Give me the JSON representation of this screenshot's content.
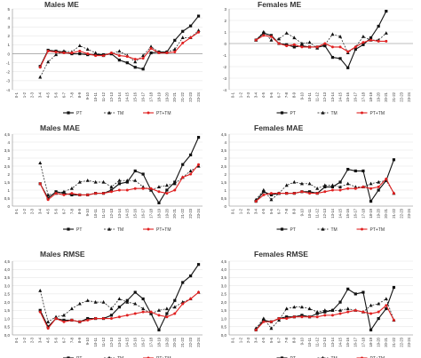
{
  "chart_data": [
    {
      "type": "line",
      "title": "Males ME",
      "ylim": [
        -4,
        5
      ],
      "yticks": [
        -4,
        -3,
        -2,
        -1,
        0,
        1,
        2,
        3,
        4,
        5
      ],
      "ytick_labels": [
        "-4",
        "-3",
        "-2",
        "-1",
        "0",
        "1",
        "2",
        "3",
        "4",
        "5"
      ],
      "categories": [
        "0-1",
        "1-2",
        "2-3",
        "3-4",
        "4-5",
        "5-6",
        "6-7",
        "7-8",
        "8-9",
        "9-10",
        "10-11",
        "11-12",
        "12-13",
        "13-14",
        "14-15",
        "15-16",
        "16-17",
        "17-18",
        "18-19",
        "19-20",
        "20-21",
        "21-22",
        "22-23",
        "23-24"
      ],
      "legend": [
        "PT",
        "TM",
        "PT+TM"
      ],
      "series": [
        {
          "name": "PT",
          "values": [
            null,
            null,
            null,
            -1.4,
            0.4,
            0.3,
            0.2,
            0.0,
            0.0,
            -0.1,
            -0.1,
            -0.1,
            0.0,
            -0.7,
            -1.0,
            -1.5,
            -1.7,
            0.1,
            0.2,
            0.2,
            1.5,
            2.5,
            3.1,
            4.2
          ]
        },
        {
          "name": "TM",
          "values": [
            null,
            null,
            null,
            -2.6,
            -0.9,
            -0.1,
            0.3,
            0.2,
            0.9,
            0.5,
            0.1,
            -0.2,
            0.0,
            0.3,
            -0.2,
            -0.9,
            -0.2,
            0.8,
            0.2,
            0.2,
            0.5,
            1.8,
            1.8,
            2.6
          ]
        },
        {
          "name": "PT+TM",
          "values": [
            null,
            null,
            null,
            -1.5,
            0.3,
            0.2,
            0.1,
            0.1,
            0.3,
            0.0,
            -0.2,
            -0.2,
            0.1,
            -0.2,
            -0.3,
            -0.6,
            -0.5,
            0.6,
            0.1,
            0.1,
            0.2,
            1.2,
            1.8,
            2.4
          ]
        }
      ]
    },
    {
      "type": "line",
      "title": "Females ME",
      "ylim": [
        -4,
        3
      ],
      "yticks": [
        -4,
        -3,
        -2,
        -1,
        0,
        1,
        2,
        3
      ],
      "ytick_labels": [
        "-4",
        "-3",
        "-2",
        "-1",
        "0",
        "1",
        "2",
        "3"
      ],
      "categories": [
        "0-1",
        "1-2",
        "2-3",
        "3-4",
        "4-5",
        "5-6",
        "6-7",
        "7-8",
        "8-9",
        "9-10",
        "10-11",
        "11-12",
        "12-13",
        "13-14",
        "14-15",
        "15-16",
        "16-17",
        "17-18",
        "18-19",
        "19-20",
        "20-21",
        "21-22",
        "22-23",
        "23-24"
      ],
      "legend": [
        "PT",
        "TM",
        "PT+TM"
      ],
      "series": [
        {
          "name": "PT",
          "values": [
            null,
            null,
            null,
            0.3,
            0.9,
            0.7,
            0.0,
            -0.1,
            -0.3,
            -0.2,
            -0.3,
            -0.3,
            -0.2,
            -1.2,
            -1.3,
            -2.1,
            -0.5,
            -0.1,
            0.5,
            1.5,
            2.8,
            null,
            null,
            null
          ]
        },
        {
          "name": "TM",
          "values": [
            null,
            null,
            null,
            0.3,
            1.0,
            0.3,
            0.4,
            0.9,
            0.5,
            0.0,
            0.1,
            -0.4,
            -0.1,
            0.8,
            0.6,
            -0.8,
            -0.3,
            0.6,
            0.3,
            0.3,
            0.9,
            null,
            null,
            null
          ]
        },
        {
          "name": "PT+TM",
          "values": [
            null,
            null,
            null,
            0.3,
            0.7,
            0.6,
            0.0,
            -0.2,
            -0.1,
            -0.3,
            -0.3,
            -0.3,
            0.0,
            -0.3,
            -0.3,
            -0.7,
            -0.3,
            0.1,
            0.3,
            0.2,
            0.2,
            null,
            null,
            null
          ]
        }
      ]
    },
    {
      "type": "line",
      "title": "Males MAE",
      "ylim": [
        0,
        4.5
      ],
      "yticks": [
        0,
        0.5,
        1,
        1.5,
        2,
        2.5,
        3,
        3.5,
        4,
        4.5
      ],
      "ytick_labels": [
        "0",
        "0,5",
        "1",
        "1,5",
        "2",
        "2,5",
        "3",
        "3,5",
        "4",
        "4,5"
      ],
      "categories": [
        "0-1",
        "1-2",
        "2-3",
        "3-4",
        "4-5",
        "5-6",
        "6-7",
        "7-8",
        "8-9",
        "9-10",
        "10-11",
        "11-12",
        "12-13",
        "13-14",
        "14-15",
        "15-16",
        "16-17",
        "17-18",
        "18-19",
        "19-20",
        "20-21",
        "21-22",
        "22-23",
        "23-24"
      ],
      "legend": [
        "PT",
        "TM",
        "PT+TM"
      ],
      "series": [
        {
          "name": "PT",
          "values": [
            null,
            null,
            null,
            1.4,
            0.5,
            0.9,
            0.8,
            0.7,
            0.7,
            0.7,
            0.8,
            0.8,
            1.0,
            1.4,
            1.5,
            2.2,
            2.0,
            1.0,
            0.2,
            1.0,
            1.5,
            2.6,
            3.2,
            4.3
          ]
        },
        {
          "name": "TM",
          "values": [
            null,
            null,
            null,
            2.7,
            0.7,
            0.8,
            0.9,
            1.1,
            1.5,
            1.6,
            1.5,
            1.5,
            1.2,
            1.6,
            1.6,
            1.6,
            1.2,
            1.0,
            1.2,
            1.3,
            1.4,
            1.8,
            2.2,
            2.5
          ]
        },
        {
          "name": "PT+TM",
          "values": [
            null,
            null,
            null,
            1.4,
            0.4,
            0.8,
            0.7,
            0.8,
            0.7,
            0.7,
            0.8,
            0.8,
            0.9,
            1.0,
            1.0,
            1.1,
            1.1,
            1.1,
            0.9,
            0.8,
            1.0,
            1.8,
            2.0,
            2.6
          ]
        }
      ]
    },
    {
      "type": "line",
      "title": "Females MAE",
      "ylim": [
        0,
        4.5
      ],
      "yticks": [
        0,
        0.5,
        1,
        1.5,
        2,
        2.5,
        3,
        3.5,
        4,
        4.5
      ],
      "ytick_labels": [
        "0",
        "0,5",
        "1",
        "1,5",
        "2",
        "2,5",
        "3",
        "3,5",
        "4",
        "4,5"
      ],
      "categories": [
        "0-1",
        "1-2",
        "2-3",
        "3-4",
        "4-5",
        "5-6",
        "6-7",
        "7-8",
        "8-9",
        "9-10",
        "10-11",
        "11-12",
        "12-13",
        "13-14",
        "14-15",
        "15-16",
        "16-17",
        "17-18",
        "18-19",
        "19-20",
        "20-21",
        "21-22",
        "22-23",
        "23-24"
      ],
      "legend": [
        "PT",
        "TM",
        "PT+TM"
      ],
      "series": [
        {
          "name": "PT",
          "values": [
            null,
            null,
            null,
            0.3,
            0.9,
            0.7,
            0.8,
            0.8,
            0.8,
            0.9,
            0.9,
            0.8,
            1.2,
            1.2,
            1.5,
            2.3,
            2.2,
            2.2,
            0.3,
            1.0,
            1.6,
            2.9,
            null,
            null
          ]
        },
        {
          "name": "TM",
          "values": [
            null,
            null,
            null,
            0.4,
            1.0,
            0.4,
            0.8,
            1.3,
            1.5,
            1.4,
            1.4,
            1.1,
            1.3,
            1.3,
            1.2,
            1.4,
            1.2,
            1.2,
            1.4,
            1.5,
            1.6,
            0.8,
            null,
            null
          ]
        },
        {
          "name": "PT+TM",
          "values": [
            null,
            null,
            null,
            0.3,
            0.7,
            0.8,
            0.8,
            0.8,
            0.8,
            0.9,
            0.8,
            0.8,
            0.9,
            1.0,
            1.0,
            1.1,
            1.1,
            1.2,
            1.1,
            1.2,
            1.7,
            0.8,
            null,
            null
          ]
        }
      ]
    },
    {
      "type": "line",
      "title": "Males RMSE",
      "ylim": [
        0,
        4.5
      ],
      "yticks": [
        0,
        0.5,
        1,
        1.5,
        2,
        2.5,
        3,
        3.5,
        4,
        4.5
      ],
      "ytick_labels": [
        "0,0",
        "0,5",
        "1,0",
        "1,5",
        "2,0",
        "2,5",
        "3,0",
        "3,5",
        "4,0",
        "4,5"
      ],
      "categories": [
        "0-1",
        "1-2",
        "2-3",
        "3-4",
        "4-5",
        "5-6",
        "6-7",
        "7-8",
        "8-9",
        "9-10",
        "10-11",
        "11-12",
        "12-13",
        "13-14",
        "14-15",
        "15-16",
        "16-17",
        "17-18",
        "18-19",
        "19-20",
        "20-21",
        "21-22",
        "22-23",
        "23-24"
      ],
      "legend": [
        "PT",
        "TM",
        "PT+TM"
      ],
      "series": [
        {
          "name": "PT",
          "values": [
            null,
            null,
            null,
            1.5,
            0.5,
            1.0,
            0.9,
            0.9,
            0.8,
            1.0,
            1.0,
            1.0,
            1.2,
            1.7,
            2.1,
            2.6,
            2.2,
            1.3,
            0.3,
            1.3,
            2.1,
            3.2,
            3.6,
            4.3
          ]
        },
        {
          "name": "TM",
          "values": [
            null,
            null,
            null,
            2.7,
            0.8,
            1.1,
            1.2,
            1.6,
            1.9,
            2.1,
            2.0,
            2.0,
            1.6,
            2.2,
            2.0,
            1.9,
            1.6,
            1.3,
            1.5,
            1.6,
            1.7,
            2.0,
            2.2,
            2.6
          ]
        },
        {
          "name": "PT+TM",
          "values": [
            null,
            null,
            null,
            1.4,
            0.4,
            1.0,
            0.8,
            0.9,
            0.8,
            0.9,
            1.0,
            1.0,
            1.0,
            1.1,
            1.2,
            1.3,
            1.4,
            1.4,
            1.2,
            1.1,
            1.3,
            1.9,
            2.2,
            2.6
          ]
        }
      ]
    },
    {
      "type": "line",
      "title": "Females RMSE",
      "ylim": [
        0,
        4.5
      ],
      "yticks": [
        0,
        0.5,
        1,
        1.5,
        2,
        2.5,
        3,
        3.5,
        4,
        4.5
      ],
      "ytick_labels": [
        "0,0",
        "0,5",
        "1,0",
        "1,5",
        "2,0",
        "2,5",
        "3,0",
        "3,5",
        "4,0",
        "4,5"
      ],
      "categories": [
        "0-1",
        "1-2",
        "2-3",
        "3-4",
        "4-5",
        "5-6",
        "6-7",
        "7-8",
        "8-9",
        "9-10",
        "10-11",
        "11-12",
        "12-13",
        "13-14",
        "14-15",
        "15-16",
        "16-17",
        "17-18",
        "18-19",
        "19-20",
        "20-21",
        "21-22",
        "22-23",
        "23-24"
      ],
      "legend": [
        "PT",
        "TM",
        "PT+TM"
      ],
      "series": [
        {
          "name": "PT",
          "values": [
            null,
            null,
            null,
            0.3,
            0.9,
            0.8,
            1.0,
            1.1,
            1.1,
            1.2,
            1.1,
            1.3,
            1.4,
            1.5,
            2.0,
            2.8,
            2.5,
            2.6,
            0.3,
            1.0,
            1.6,
            2.9,
            null,
            null
          ]
        },
        {
          "name": "TM",
          "values": [
            null,
            null,
            null,
            0.4,
            1.0,
            0.4,
            0.9,
            1.6,
            1.7,
            1.7,
            1.6,
            1.4,
            1.5,
            1.5,
            1.5,
            1.6,
            1.5,
            1.4,
            1.8,
            1.9,
            2.2,
            0.9,
            null,
            null
          ]
        },
        {
          "name": "PT+TM",
          "values": [
            null,
            null,
            null,
            0.3,
            0.8,
            0.8,
            1.0,
            1.0,
            1.1,
            1.1,
            1.1,
            1.1,
            1.2,
            1.2,
            1.3,
            1.4,
            1.5,
            1.4,
            1.3,
            1.4,
            1.8,
            0.9,
            null,
            null
          ]
        }
      ]
    }
  ],
  "colors": {
    "pt": "#111111",
    "tm": "#111111",
    "pt_tm": "#e02020",
    "axis": "#888888",
    "grid": "#d9d9d9",
    "text": "#333333"
  }
}
